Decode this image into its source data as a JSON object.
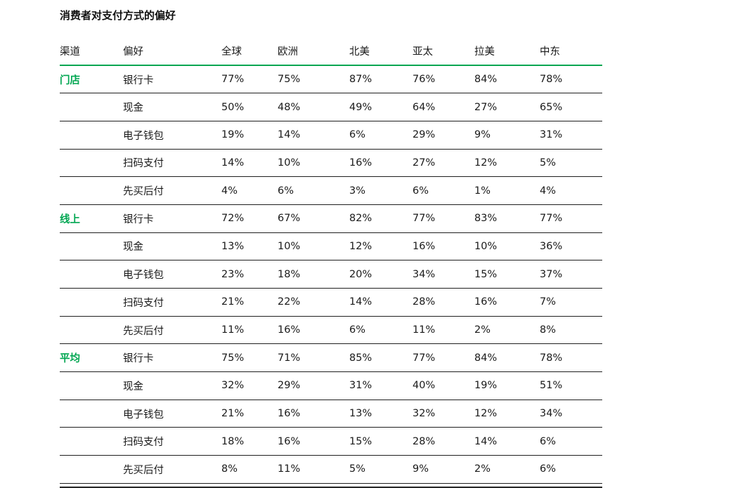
{
  "title": "消费者对支付方式的偏好",
  "colors": {
    "accent_green": "#00A651",
    "text": "#1A1A1A",
    "row_line": "#1F1F1F",
    "background": "#FFFFFF"
  },
  "chart_data": {
    "type": "table",
    "title": "消费者对支付方式的偏好",
    "columns": [
      "渠道",
      "偏好",
      "全球",
      "欧洲",
      "北美",
      "亚太",
      "拉美",
      "中东"
    ],
    "groups": [
      {
        "channel": "门店",
        "rows": [
          {
            "preference": "银行卡",
            "values": [
              "77%",
              "75%",
              "87%",
              "76%",
              "84%",
              "78%"
            ]
          },
          {
            "preference": "现金",
            "values": [
              "50%",
              "48%",
              "49%",
              "64%",
              "27%",
              "65%"
            ]
          },
          {
            "preference": "电子钱包",
            "values": [
              "19%",
              "14%",
              "6%",
              "29%",
              "9%",
              "31%"
            ]
          },
          {
            "preference": "扫码支付",
            "values": [
              "14%",
              "10%",
              "16%",
              "27%",
              "12%",
              "5%"
            ]
          },
          {
            "preference": "先买后付",
            "values": [
              "4%",
              "6%",
              "3%",
              "6%",
              "1%",
              "4%"
            ]
          }
        ]
      },
      {
        "channel": "线上",
        "rows": [
          {
            "preference": "银行卡",
            "values": [
              "72%",
              "67%",
              "82%",
              "77%",
              "83%",
              "77%"
            ]
          },
          {
            "preference": "现金",
            "values": [
              "13%",
              "10%",
              "12%",
              "16%",
              "10%",
              "36%"
            ]
          },
          {
            "preference": "电子钱包",
            "values": [
              "23%",
              "18%",
              "20%",
              "34%",
              "15%",
              "37%"
            ]
          },
          {
            "preference": "扫码支付",
            "values": [
              "21%",
              "22%",
              "14%",
              "28%",
              "16%",
              "7%"
            ]
          },
          {
            "preference": "先买后付",
            "values": [
              "11%",
              "16%",
              "6%",
              "11%",
              "2%",
              "8%"
            ]
          }
        ]
      },
      {
        "channel": "平均",
        "rows": [
          {
            "preference": "银行卡",
            "values": [
              "75%",
              "71%",
              "85%",
              "77%",
              "84%",
              "78%"
            ]
          },
          {
            "preference": "现金",
            "values": [
              "32%",
              "29%",
              "31%",
              "40%",
              "19%",
              "51%"
            ]
          },
          {
            "preference": "电子钱包",
            "values": [
              "21%",
              "16%",
              "13%",
              "32%",
              "12%",
              "34%"
            ]
          },
          {
            "preference": "扫码支付",
            "values": [
              "18%",
              "16%",
              "15%",
              "28%",
              "14%",
              "6%"
            ]
          },
          {
            "preference": "先买后付",
            "values": [
              "8%",
              "11%",
              "5%",
              "9%",
              "2%",
              "6%"
            ]
          }
        ]
      }
    ]
  }
}
